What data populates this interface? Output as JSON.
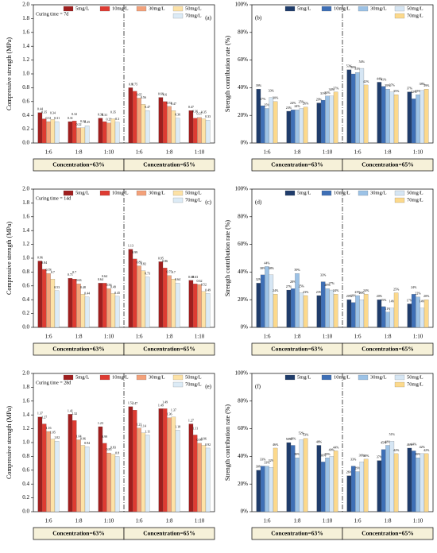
{
  "chart_data": [
    {
      "type": "bar",
      "panel": "(a)",
      "annotation": "Curing time = 7d",
      "ylabel": "Compressive strength (MPa)",
      "categories": [
        "1:6",
        "1:8",
        "1:10",
        "1:6",
        "1:8",
        "1:10"
      ],
      "groups": [
        "Concentration=63%",
        "Concentration=65%"
      ],
      "ylim": [
        0,
        2
      ],
      "yticks": [
        {
          "value": 0,
          "label": "0.0"
        },
        0.2,
        0.4,
        0.6,
        0.8,
        {
          "value": 1,
          "label": "1.0"
        },
        1.2,
        1.4,
        1.6,
        1.8,
        {
          "value": 2,
          "label": "2.0"
        }
      ],
      "series": [
        {
          "name": "5mg/L",
          "color": "#a01e1e",
          "values": [
            0.44,
            0.31,
            0.36,
            0.8,
            0.66,
            0.47
          ]
        },
        {
          "name": "10mg/L",
          "color": "#de3b32",
          "values": [
            0.35,
            0.32,
            0.31,
            0.75,
            0.6,
            0.36
          ]
        },
        {
          "name": "30mg/L",
          "color": "#f3a17a",
          "values": [
            0.31,
            0.22,
            0.29,
            0.65,
            0.53,
            0.37
          ]
        },
        {
          "name": "50mg/L",
          "color": "#fde2a6",
          "values": [
            0.34,
            0.22,
            0.35,
            0.56,
            0.47,
            0.35
          ]
        },
        {
          "name": "70mg/L",
          "color": "#dcebf6",
          "values": [
            0.31,
            0.25,
            0.3,
            0.47,
            0.36,
            0.33
          ]
        }
      ]
    },
    {
      "type": "bar",
      "panel": "(b)",
      "ylabel": "Strength contribution rate (%)",
      "categories": [
        "1:6",
        "1:8",
        "1:10",
        "1:6",
        "1:8",
        "1:10"
      ],
      "groups": [
        "Concentration=63%",
        "Concentration=65%"
      ],
      "ylim": [
        0,
        100
      ],
      "yticks": [
        {
          "value": 0,
          "label": "0%"
        },
        {
          "value": 20,
          "label": "20%"
        },
        {
          "value": 40,
          "label": "40%"
        },
        {
          "value": 60,
          "label": "60%"
        },
        {
          "value": 80,
          "label": "80%"
        },
        {
          "value": 100,
          "label": "100%"
        }
      ],
      "series": [
        {
          "name": "5mg/L",
          "color": "#1f3c6b",
          "values": [
            39,
            23,
            29,
            53,
            44,
            37
          ],
          "value_labels": [
            "39%",
            "23%",
            "29%",
            "53%",
            "44%",
            "37%"
          ]
        },
        {
          "name": "10mg/L",
          "color": "#3e6fb6",
          "values": [
            27,
            24,
            31,
            50,
            41,
            32
          ],
          "value_labels": [
            "27%",
            "24%",
            "31%",
            "50%",
            "41%",
            "32%"
          ]
        },
        {
          "name": "30mg/L",
          "color": "#9cc2e6",
          "values": [
            25,
            24,
            34,
            51,
            39,
            35
          ],
          "value_labels": [
            "25%",
            "24%",
            "34%",
            "51%",
            "39%",
            "35%"
          ]
        },
        {
          "name": "50mg/L",
          "color": "#d6e6f4",
          "values": [
            33,
            25,
            34,
            54,
            37,
            38
          ],
          "value_labels": [
            "33%",
            "25%",
            "34%",
            "54%",
            "37%",
            "38%"
          ]
        },
        {
          "name": "70mg/L",
          "color": "#fcd98c",
          "values": [
            30,
            26,
            37,
            42,
            35,
            39
          ],
          "value_labels": [
            "30%",
            "26%",
            "37%",
            "42%",
            "35%",
            "39%"
          ]
        }
      ]
    },
    {
      "type": "bar",
      "panel": "(c)",
      "annotation": "Curing time = 14d",
      "ylabel": "Compressive strength (MPa)",
      "categories": [
        "1:6",
        "1:8",
        "1:10",
        "1:6",
        "1:8",
        "1:10"
      ],
      "groups": [
        "Concentration=63%",
        "Concentration=65%"
      ],
      "ylim": [
        0,
        2
      ],
      "yticks": [
        {
          "value": 0,
          "label": "0.0"
        },
        0.2,
        0.4,
        0.6,
        0.8,
        {
          "value": 1,
          "label": "1.0"
        },
        1.2,
        1.4,
        1.6,
        1.8,
        {
          "value": 2,
          "label": "2.0"
        }
      ],
      "series": [
        {
          "name": "5mg/L",
          "color": "#a01e1e",
          "values": [
            0.96,
            0.71,
            0.64,
            1.13,
            0.95,
            0.68
          ]
        },
        {
          "name": "10mg/L",
          "color": "#de3b32",
          "values": [
            0.84,
            0.7,
            0.64,
            0.99,
            0.86,
            0.63
          ]
        },
        {
          "name": "30mg/L",
          "color": "#f3a17a",
          "values": [
            0.78,
            0.63,
            0.56,
            0.89,
            0.75,
            0.62
          ]
        },
        {
          "name": "50mg/L",
          "color": "#fde2a6",
          "values": [
            0.7,
            0.48,
            0.49,
            0.82,
            0.7,
            0.52
          ]
        },
        {
          "name": "70mg/L",
          "color": "#dcebf6",
          "values": [
            0.53,
            0.44,
            0.45,
            0.73,
            0.64,
            0.49
          ]
        }
      ]
    },
    {
      "type": "bar",
      "panel": "(d)",
      "ylabel": "Strength contribution rate (%)",
      "categories": [
        "1:6",
        "1:8",
        "1:10",
        "1:6",
        "1:8",
        "1:10"
      ],
      "groups": [
        "Concentration=63%",
        "Concentration=65%"
      ],
      "ylim": [
        0,
        100
      ],
      "yticks": [
        {
          "value": 0,
          "label": "0%"
        },
        {
          "value": 20,
          "label": "20%"
        },
        {
          "value": 40,
          "label": "40%"
        },
        {
          "value": 60,
          "label": "60%"
        },
        {
          "value": 80,
          "label": "80%"
        },
        {
          "value": 100,
          "label": "100%"
        }
      ],
      "series": [
        {
          "name": "5mg/L",
          "color": "#1f3c6b",
          "values": [
            32,
            27,
            23,
            20,
            20,
            17
          ],
          "value_labels": [
            "32%",
            "27%",
            "23%",
            "20%",
            "20%",
            "17%"
          ]
        },
        {
          "name": "10mg/L",
          "color": "#3e6fb6",
          "values": [
            38,
            28,
            33,
            18,
            15,
            24
          ],
          "value_labels": [
            "38%",
            "28%",
            "33%",
            "18%",
            "15%",
            "24%"
          ]
        },
        {
          "name": "30mg/L",
          "color": "#9cc2e6",
          "values": [
            44,
            39,
            28,
            23,
            11,
            22
          ],
          "value_labels": [
            "44%",
            "39%",
            "28%",
            "23%",
            "11%",
            "22%"
          ]
        },
        {
          "name": "50mg/L",
          "color": "#d6e6f4",
          "values": [
            38,
            25,
            27,
            20,
            14,
            14
          ],
          "value_labels": [
            "38%",
            "25%",
            "27%",
            "20%",
            "14%",
            "14%"
          ]
        },
        {
          "name": "70mg/L",
          "color": "#fcd98c",
          "values": [
            24,
            23,
            24,
            24,
            25,
            20
          ],
          "value_labels": [
            "24%",
            "23%",
            "24%",
            "24%",
            "25%",
            "20%"
          ]
        }
      ]
    },
    {
      "type": "bar",
      "panel": "(e)",
      "annotation": "Curing time = 28d",
      "ylabel": "Compressive strength (MPa)",
      "categories": [
        "1:6",
        "1:8",
        "1:10",
        "1:6",
        "1:8",
        "1:10"
      ],
      "groups": [
        "Concentration=63%",
        "Concentration=65%"
      ],
      "ylim": [
        0,
        2
      ],
      "yticks": [
        {
          "value": 0,
          "label": "0.0"
        },
        0.2,
        0.4,
        0.6,
        0.8,
        {
          "value": 1,
          "label": "1.0"
        },
        1.2,
        1.4,
        1.6,
        1.8,
        {
          "value": 2,
          "label": "2.0"
        }
      ],
      "series": [
        {
          "name": "5mg/L",
          "color": "#a01e1e",
          "values": [
            1.37,
            1.41,
            1.23,
            1.52,
            1.49,
            1.27
          ]
        },
        {
          "name": "10mg/L",
          "color": "#de3b32",
          "values": [
            1.27,
            1.32,
            0.99,
            1.47,
            1.49,
            1.11
          ]
        },
        {
          "name": "30mg/L",
          "color": "#f3a17a",
          "values": [
            1.16,
            1.04,
            0.85,
            1.21,
            1.36,
            0.99
          ]
        },
        {
          "name": "50mg/L",
          "color": "#fde2a6",
          "values": [
            1.05,
            0.96,
            0.83,
            1.14,
            1.37,
            0.96
          ]
        },
        {
          "name": "70mg/L",
          "color": "#dcebf6",
          "values": [
            1.02,
            0.94,
            0.8,
            1.11,
            1.18,
            0.92
          ]
        }
      ]
    },
    {
      "type": "bar",
      "panel": "(f)",
      "ylabel": "Strength contribution rate (%)",
      "categories": [
        "1:6",
        "1:8",
        "1:10",
        "1:6",
        "1:8",
        "1:10"
      ],
      "groups": [
        "Concentration=63%",
        "Concentration=65%"
      ],
      "ylim": [
        0,
        100
      ],
      "yticks": [
        {
          "value": 0,
          "label": "0%"
        },
        {
          "value": 20,
          "label": "20%"
        },
        {
          "value": 40,
          "label": "40%"
        },
        {
          "value": 60,
          "label": "60%"
        },
        {
          "value": 80,
          "label": "80%"
        },
        {
          "value": 100,
          "label": "100%"
        }
      ],
      "series": [
        {
          "name": "5mg/L",
          "color": "#1f3c6b",
          "values": [
            30,
            50,
            48,
            26,
            37,
            46
          ],
          "value_labels": [
            "30%",
            "50%",
            "48%",
            "26%",
            "37%",
            "46%"
          ]
        },
        {
          "name": "10mg/L",
          "color": "#3e6fb6",
          "values": [
            33,
            48,
            36,
            33,
            45,
            44
          ],
          "value_labels": [
            "33%",
            "48%",
            "36%",
            "33%",
            "45%",
            "44%"
          ]
        },
        {
          "name": "30mg/L",
          "color": "#9cc2e6",
          "values": [
            33,
            39,
            39,
            29,
            48,
            39
          ],
          "value_labels": [
            "33%",
            "39%",
            "39%",
            "29%",
            "48%",
            "39%"
          ]
        },
        {
          "name": "50mg/L",
          "color": "#d6e6f4",
          "values": [
            32,
            52,
            40,
            36,
            51,
            42
          ],
          "value_labels": [
            "32%",
            "52%",
            "40%",
            "36%",
            "51%",
            "42%"
          ]
        },
        {
          "name": "70mg/L",
          "color": "#fcd98c",
          "values": [
            46,
            53,
            44,
            38,
            42,
            42
          ],
          "value_labels": [
            "46%",
            "53%",
            "44%",
            "38%",
            "42%",
            "42%"
          ]
        }
      ]
    }
  ]
}
